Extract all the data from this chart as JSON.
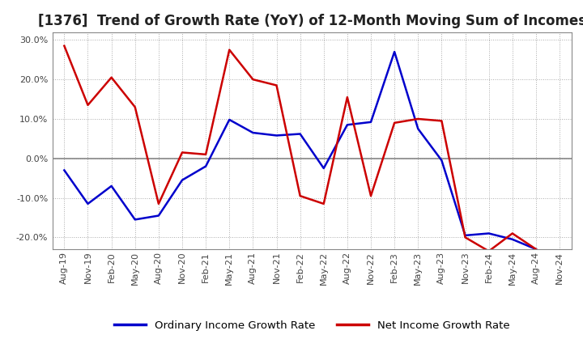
{
  "title": "[1376]  Trend of Growth Rate (YoY) of 12-Month Moving Sum of Incomes",
  "ylim": [
    -0.23,
    0.32
  ],
  "yticks": [
    -0.2,
    -0.1,
    0.0,
    0.1,
    0.2,
    0.3
  ],
  "ytick_labels": [
    "-20.0%",
    "-10.0%",
    "0.0%",
    "10.0%",
    "20.0%",
    "30.0%"
  ],
  "x_labels": [
    "Aug-19",
    "Nov-19",
    "Feb-20",
    "May-20",
    "Aug-20",
    "Nov-20",
    "Feb-21",
    "May-21",
    "Aug-21",
    "Nov-21",
    "Feb-22",
    "May-22",
    "Aug-22",
    "Nov-22",
    "Feb-23",
    "May-23",
    "Aug-23",
    "Nov-23",
    "Feb-24",
    "May-24",
    "Aug-24",
    "Nov-24"
  ],
  "ordinary_income": [
    -0.03,
    -0.115,
    -0.07,
    -0.155,
    -0.145,
    -0.055,
    -0.02,
    0.098,
    0.065,
    0.058,
    0.062,
    -0.025,
    0.085,
    0.092,
    0.27,
    0.075,
    -0.005,
    -0.195,
    -0.19,
    -0.205,
    -0.23,
    null
  ],
  "net_income": [
    0.285,
    0.135,
    0.205,
    0.13,
    -0.115,
    0.015,
    0.01,
    0.275,
    0.2,
    0.185,
    -0.095,
    -0.115,
    0.155,
    -0.095,
    0.09,
    0.1,
    0.095,
    -0.2,
    -0.235,
    -0.19,
    -0.23,
    null
  ],
  "line_color_ordinary": "#0000cc",
  "line_color_net": "#cc0000",
  "background_color": "#ffffff",
  "grid_color": "#aaaaaa",
  "title_fontsize": 12,
  "legend_ordinary": "Ordinary Income Growth Rate",
  "legend_net": "Net Income Growth Rate"
}
